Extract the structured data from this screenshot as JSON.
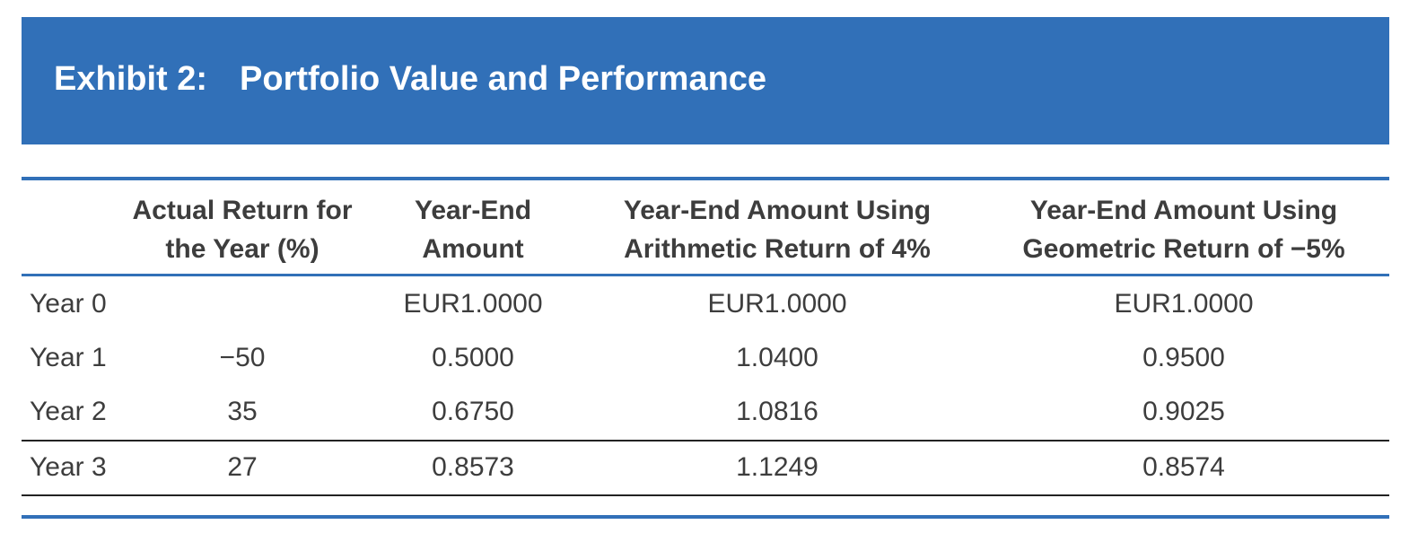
{
  "exhibit": {
    "number": "Exhibit 2:",
    "title": "Portfolio Value and Performance"
  },
  "table": {
    "headers": [
      "",
      "Actual Return for\nthe Year (%)",
      "Year-End\nAmount",
      "Year-End Amount Using\nArithmetic Return of 4%",
      "Year-End Amount Using\nGeometric Return of −5%"
    ],
    "rows": [
      [
        "Year 0",
        "",
        "EUR1.0000",
        "EUR1.0000",
        "EUR1.0000"
      ],
      [
        "Year 1",
        "−50",
        "0.5000",
        "1.0400",
        "0.9500"
      ],
      [
        "Year 2",
        "35",
        "0.6750",
        "1.0816",
        "0.9025"
      ],
      [
        "Year 3",
        "27",
        "0.8573",
        "1.1249",
        "0.8574"
      ]
    ]
  },
  "colors": {
    "accent": "#3170b8",
    "text": "#3d3d3d",
    "rule": "#222222",
    "banner_text": "#ffffff"
  }
}
